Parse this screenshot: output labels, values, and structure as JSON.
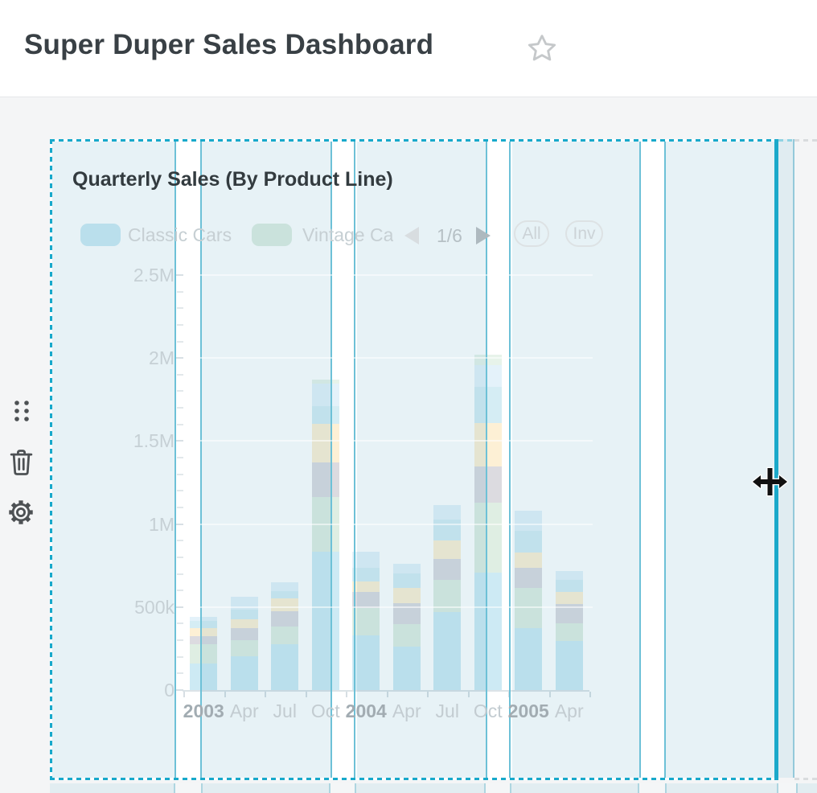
{
  "header": {
    "title": "Super Duper Sales Dashboard"
  },
  "icons": {
    "favorite": "star-outline",
    "drag_handle": "grip-dots",
    "delete": "trash-can",
    "settings": "gear",
    "cursor": "move-horizontal",
    "legend_prev": "triangle-left",
    "legend_next": "triangle-right"
  },
  "colors": {
    "accent_teal": "#1aa8ca",
    "selection_tint": "rgba(21,130,165,0.10)",
    "gutter_line": "#6dc1d7",
    "canvas_bg": "#f4f5f6"
  },
  "card": {
    "title": "Quarterly Sales (By Product Line)",
    "legend": {
      "items": [
        {
          "label": "Classic Cars",
          "color": "#cdeaf4"
        },
        {
          "label": "Vintage Cars",
          "visible_label": "Vintage Ca",
          "color": "#dfeee3"
        }
      ],
      "page_indicator": "1/6",
      "selector_buttons": [
        {
          "label": "All"
        },
        {
          "label": "Inv"
        }
      ]
    }
  },
  "chart_data": {
    "type": "bar",
    "stacked": true,
    "title": "Quarterly Sales (By Product Line)",
    "xlabel": "",
    "ylabel": "",
    "y_max": 2500000,
    "y_tick_labels": [
      "0",
      "500k",
      "1M",
      "1.5M",
      "2M",
      "2.5M"
    ],
    "grid": true,
    "legend_position": "top",
    "legend_page": "1/6",
    "categories": [
      "2003",
      "Apr",
      "Jul",
      "Oct",
      "2004",
      "Apr",
      "Jul",
      "Oct",
      "2005",
      "Apr"
    ],
    "category_is_year": [
      true,
      false,
      false,
      false,
      true,
      false,
      false,
      false,
      true,
      false
    ],
    "series": [
      {
        "name": "Classic Cars",
        "color": "#cdeaf4",
        "values": [
          160000,
          205000,
          275000,
          835000,
          330000,
          262000,
          470000,
          705000,
          375000,
          295000
        ]
      },
      {
        "name": "Vintage Cars",
        "color": "#dfeee3",
        "values": [
          117000,
          97000,
          107000,
          330000,
          165000,
          136000,
          195000,
          425000,
          240000,
          107000
        ]
      },
      {
        "name": "",
        "color": "#dcdbe0",
        "values": [
          49000,
          73000,
          92000,
          205000,
          97000,
          126000,
          126000,
          215000,
          120000,
          117000
        ]
      },
      {
        "name": "",
        "color": "#fdf0d5",
        "values": [
          49000,
          53000,
          78000,
          233000,
          63000,
          92000,
          112000,
          265000,
          92000,
          73000
        ]
      },
      {
        "name": "",
        "color": "#d5edf4",
        "values": [
          44000,
          58000,
          44000,
          107000,
          83000,
          87000,
          126000,
          218000,
          131000,
          73000
        ]
      },
      {
        "name": "",
        "color": "#e4f2fa",
        "values": [
          24000,
          78000,
          53000,
          136000,
          97000,
          58000,
          87000,
          131000,
          121000,
          53000
        ]
      },
      {
        "name": "",
        "color": "#e7f3ea",
        "values": [
          0,
          0,
          0,
          24000,
          0,
          0,
          0,
          63000,
          0,
          0
        ]
      }
    ]
  }
}
